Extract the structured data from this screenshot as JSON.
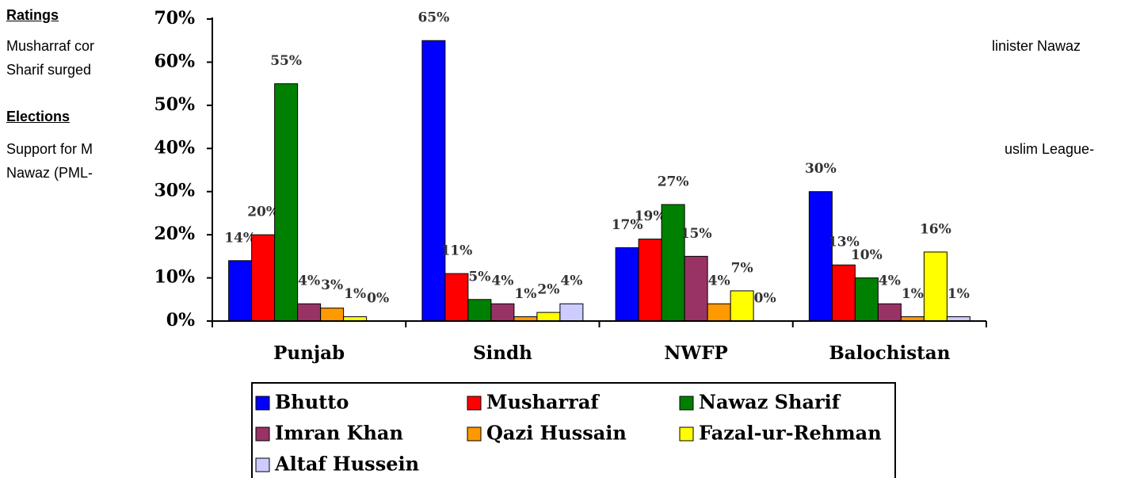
{
  "document": {
    "ratings_heading": "Ratings",
    "ratings_left": [
      "Musharraf cor",
      "Sharif surged"
    ],
    "ratings_right": [
      "linister Nawaz"
    ],
    "elections_heading": "Elections",
    "elections_left": [
      "Support for M",
      "Nawaz (PML-"
    ],
    "elections_right": [
      "uslim League-"
    ]
  },
  "chart_data": {
    "type": "bar",
    "categories": [
      "Punjab",
      "Sindh",
      "NWFP",
      "Balochistan"
    ],
    "series": [
      {
        "name": "Bhutto",
        "color": "#0000ff",
        "values": [
          14,
          65,
          17,
          30
        ],
        "value_labels": [
          "14%",
          "65%",
          "17%",
          "30%"
        ]
      },
      {
        "name": "Musharraf",
        "color": "#ff0000",
        "values": [
          20,
          11,
          19,
          13
        ],
        "value_labels": [
          "20%",
          "11%",
          "19%",
          "13%"
        ]
      },
      {
        "name": "Nawaz Sharif",
        "color": "#008000",
        "values": [
          55,
          5,
          27,
          10
        ],
        "value_labels": [
          "55%",
          "5%",
          "27%",
          "10%"
        ]
      },
      {
        "name": "Imran Khan",
        "color": "#993366",
        "values": [
          4,
          4,
          15,
          4
        ],
        "value_labels": [
          "4%",
          "4%",
          "15%",
          "4%"
        ]
      },
      {
        "name": "Qazi Hussain",
        "color": "#ff9900",
        "values": [
          3,
          1,
          4,
          1
        ],
        "value_labels": [
          "3%",
          "1%",
          "4%",
          "1%"
        ]
      },
      {
        "name": "Fazal-ur-Rehman",
        "color": "#ffff00",
        "values": [
          1,
          2,
          7,
          16
        ],
        "value_labels": [
          "1%",
          "2%",
          "7%",
          "16%"
        ]
      },
      {
        "name": "Altaf Hussein",
        "color": "#ccccff",
        "values": [
          0,
          4,
          0,
          1
        ],
        "value_labels": [
          "0%",
          "4%",
          "0%",
          "1%"
        ]
      }
    ],
    "ylim": [
      0,
      70
    ],
    "yticks": [
      {
        "value": 0,
        "label": "0%"
      },
      {
        "value": 10,
        "label": "10%"
      },
      {
        "value": 20,
        "label": "20%"
      },
      {
        "value": 30,
        "label": "30%"
      },
      {
        "value": 40,
        "label": "40%"
      },
      {
        "value": 50,
        "label": "50%"
      },
      {
        "value": 60,
        "label": "60%"
      },
      {
        "value": 70,
        "label": "70%"
      }
    ],
    "legend": "bottom"
  }
}
